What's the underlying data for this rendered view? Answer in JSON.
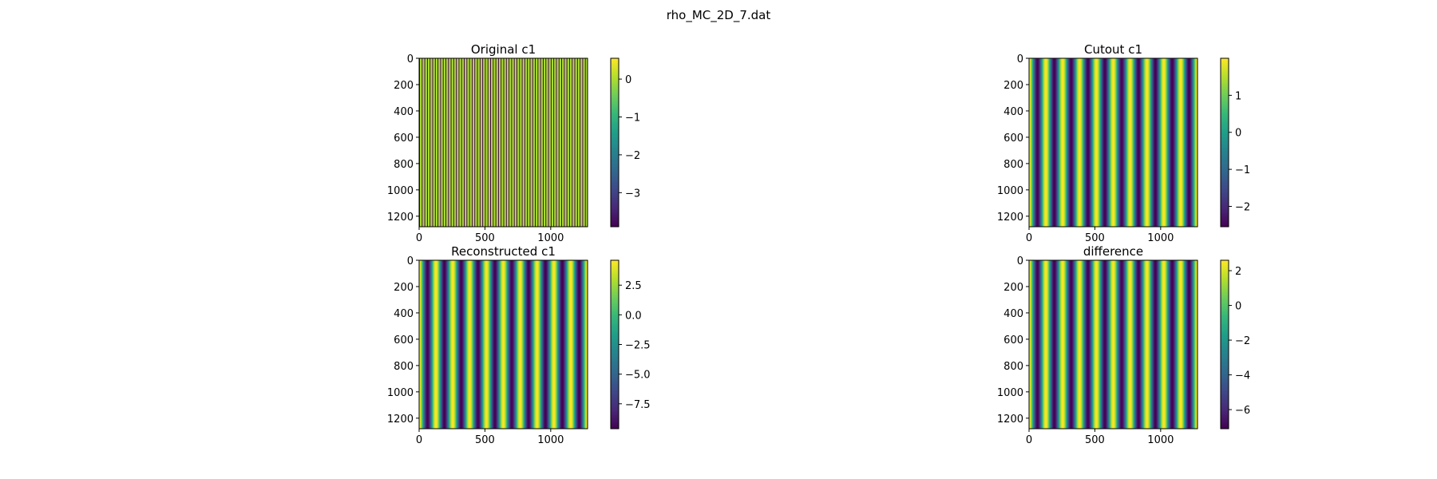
{
  "figure": {
    "suptitle": "rho_MC_2D_7.dat"
  },
  "chart_data": [
    {
      "type": "heatmap",
      "title": "Original c1",
      "xlabel": "",
      "ylabel": "",
      "xlim": [
        0,
        1280
      ],
      "ylim": [
        1280,
        0
      ],
      "xticks": [
        0,
        500,
        1000
      ],
      "yticks": [
        0,
        200,
        400,
        600,
        800,
        1000,
        1200
      ],
      "colormap": "viridis",
      "colorbar": {
        "vmin": -3.9,
        "vmax": 0.55,
        "ticks": [
          -3,
          -2,
          -1,
          0
        ]
      },
      "pattern": {
        "orientation": "vertical-stripes",
        "stripes": 64,
        "note_value_mostly": 0.0
      }
    },
    {
      "type": "heatmap",
      "title": "Cutout c1",
      "xlabel": "",
      "ylabel": "",
      "xlim": [
        0,
        1280
      ],
      "ylim": [
        1280,
        0
      ],
      "xticks": [
        0,
        500,
        1000
      ],
      "yticks": [
        0,
        200,
        400,
        600,
        800,
        1000,
        1200
      ],
      "colormap": "viridis",
      "colorbar": {
        "vmin": -2.55,
        "vmax": 2.0,
        "ticks": [
          -2,
          -1,
          0,
          1
        ]
      },
      "pattern": {
        "orientation": "vertical-stripes",
        "periods": 10
      }
    },
    {
      "type": "heatmap",
      "title": "Reconstructed c1",
      "xlabel": "",
      "ylabel": "",
      "xlim": [
        0,
        1280
      ],
      "ylim": [
        1280,
        0
      ],
      "xticks": [
        0,
        500,
        1000
      ],
      "yticks": [
        0,
        200,
        400,
        600,
        800,
        1000,
        1200
      ],
      "colormap": "viridis",
      "colorbar": {
        "vmin": -9.6,
        "vmax": 4.6,
        "ticks": [
          -7.5,
          -5.0,
          -2.5,
          0.0,
          2.5
        ]
      },
      "pattern": {
        "orientation": "vertical-stripes",
        "periods": 10
      }
    },
    {
      "type": "heatmap",
      "title": "difference",
      "xlabel": "",
      "ylabel": "",
      "xlim": [
        0,
        1280
      ],
      "ylim": [
        1280,
        0
      ],
      "xticks": [
        0,
        500,
        1000
      ],
      "yticks": [
        0,
        200,
        400,
        600,
        800,
        1000,
        1200
      ],
      "colormap": "viridis",
      "colorbar": {
        "vmin": -7.1,
        "vmax": 2.6,
        "ticks": [
          -6,
          -4,
          -2,
          0,
          2
        ]
      },
      "pattern": {
        "orientation": "vertical-stripes",
        "periods": 10
      }
    }
  ]
}
